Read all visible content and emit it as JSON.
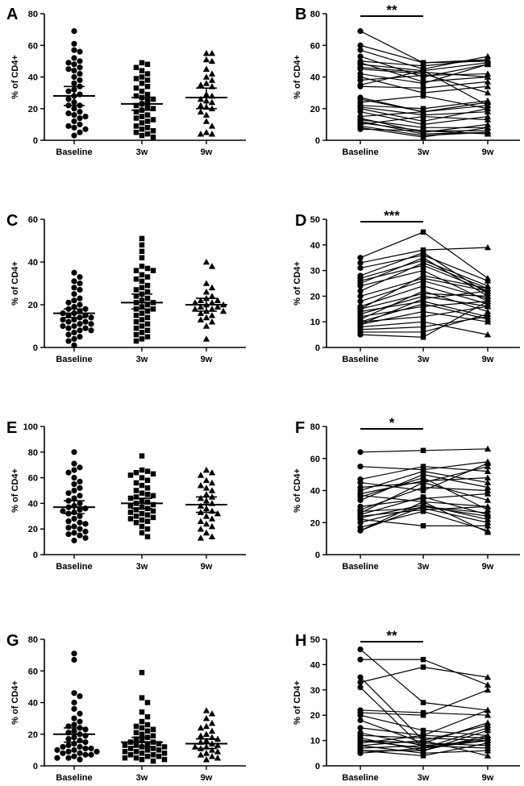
{
  "chart_data": [
    {
      "panel": "A",
      "type": "scatter",
      "ylabel": "% of CD4+",
      "ylim": [
        0,
        80
      ],
      "yticks": [
        0,
        20,
        40,
        60,
        80
      ],
      "categories": [
        "Baseline",
        "3w",
        "9w"
      ],
      "markers": [
        "circle",
        "square",
        "triangle"
      ],
      "series": [
        {
          "name": "Baseline",
          "values": [
            69,
            61,
            57,
            56,
            52,
            50,
            49,
            48,
            46,
            45,
            44,
            42,
            40,
            38,
            36,
            34,
            32,
            31,
            29,
            28,
            26,
            24,
            22,
            22,
            20,
            18,
            17,
            16,
            15,
            14,
            12,
            10,
            9,
            8,
            7,
            5,
            3
          ],
          "mean": 28,
          "sem": [
            22,
            34
          ]
        },
        {
          "name": "3w",
          "values": [
            49,
            48,
            46,
            44,
            42,
            40,
            39,
            38,
            36,
            34,
            33,
            31,
            29,
            28,
            27,
            26,
            25,
            23,
            22,
            21,
            20,
            19,
            18,
            16,
            15,
            14,
            13,
            12,
            11,
            9,
            8,
            7,
            6,
            5,
            4,
            3,
            2
          ],
          "mean": 23,
          "sem": [
            19,
            27
          ]
        },
        {
          "name": "9w",
          "values": [
            55,
            55,
            51,
            50,
            45,
            42,
            40,
            38,
            36,
            35,
            34,
            29,
            28,
            26,
            25,
            24,
            22,
            21,
            20,
            18,
            16,
            12,
            9,
            5,
            4,
            4
          ],
          "mean": 27,
          "sem": [
            20,
            33
          ]
        }
      ]
    },
    {
      "panel": "B",
      "type": "line",
      "ylabel": "% of CD4+",
      "ylim": [
        0,
        80
      ],
      "yticks": [
        0,
        20,
        40,
        60,
        80
      ],
      "categories": [
        "Baseline",
        "3w",
        "9w"
      ],
      "markers": [
        "circle",
        "square",
        "triangle"
      ],
      "significance": {
        "from": "Baseline",
        "to": "3w",
        "text": "**"
      },
      "pairs": [
        [
          69,
          49,
          51
        ],
        [
          60,
          49,
          50
        ],
        [
          57,
          45,
          53
        ],
        [
          53,
          40,
          48
        ],
        [
          50,
          47,
          51
        ],
        [
          49,
          37,
          40
        ],
        [
          48,
          44,
          49
        ],
        [
          46,
          43,
          40
        ],
        [
          45,
          42,
          30
        ],
        [
          42,
          36,
          48
        ],
        [
          40,
          30,
          34
        ],
        [
          38,
          41,
          42
        ],
        [
          35,
          44,
          22
        ],
        [
          34,
          33,
          37
        ],
        [
          27,
          18,
          22
        ],
        [
          26,
          18,
          24
        ],
        [
          24,
          28,
          20
        ],
        [
          22,
          20,
          25
        ],
        [
          21,
          16,
          18
        ],
        [
          20,
          12,
          20
        ],
        [
          18,
          10,
          15
        ],
        [
          15,
          18,
          24
        ],
        [
          14,
          5,
          10
        ],
        [
          13,
          8,
          8
        ],
        [
          12,
          4,
          5
        ],
        [
          11,
          6,
          4
        ],
        [
          10,
          15,
          13
        ],
        [
          9,
          3,
          5
        ],
        [
          8,
          2,
          8
        ],
        [
          7,
          6,
          6
        ]
      ]
    },
    {
      "panel": "C",
      "type": "scatter",
      "ylabel": "% of CD4+",
      "ylim": [
        0,
        60
      ],
      "yticks": [
        0,
        20,
        40,
        60
      ],
      "categories": [
        "Baseline",
        "3w",
        "9w"
      ],
      "markers": [
        "circle",
        "square",
        "triangle"
      ],
      "series": [
        {
          "name": "Baseline",
          "values": [
            35,
            33,
            31,
            30,
            28,
            27,
            25,
            23,
            22,
            21,
            20,
            19,
            18,
            18,
            17,
            16,
            16,
            15,
            15,
            14,
            14,
            13,
            13,
            12,
            12,
            11,
            11,
            10,
            10,
            9,
            9,
            8,
            8,
            7,
            6,
            5,
            4,
            3,
            1
          ],
          "mean": 16,
          "sem": [
            14,
            18
          ]
        },
        {
          "name": "3w",
          "values": [
            51,
            48,
            45,
            42,
            38,
            37,
            36,
            36,
            34,
            33,
            32,
            31,
            29,
            28,
            27,
            26,
            25,
            24,
            23,
            22,
            21,
            21,
            20,
            19,
            18,
            18,
            17,
            16,
            15,
            14,
            13,
            12,
            11,
            10,
            9,
            8,
            7,
            6,
            5,
            4,
            3
          ],
          "mean": 21,
          "sem": [
            18,
            25
          ]
        },
        {
          "name": "9w",
          "values": [
            40,
            38,
            30,
            28,
            26,
            24,
            23,
            22,
            22,
            21,
            21,
            20,
            20,
            19,
            19,
            18,
            18,
            17,
            17,
            16,
            15,
            14,
            13,
            12,
            10,
            4
          ],
          "mean": 20,
          "sem": [
            17,
            23
          ]
        }
      ]
    },
    {
      "panel": "D",
      "type": "line",
      "ylabel": "% of CD4+",
      "ylim": [
        0,
        50
      ],
      "yticks": [
        0,
        10,
        20,
        30,
        40,
        50
      ],
      "categories": [
        "Baseline",
        "3w",
        "9w"
      ],
      "markers": [
        "circle",
        "square",
        "triangle"
      ],
      "significance": {
        "from": "Baseline",
        "to": "3w",
        "text": "***"
      },
      "pairs": [
        [
          35,
          45,
          27
        ],
        [
          33,
          38,
          39
        ],
        [
          31,
          36,
          26
        ],
        [
          28,
          37,
          21
        ],
        [
          27,
          34,
          24
        ],
        [
          26,
          32,
          22
        ],
        [
          25,
          35,
          20
        ],
        [
          24,
          30,
          18
        ],
        [
          22,
          33,
          23
        ],
        [
          20,
          27,
          22
        ],
        [
          18,
          26,
          19
        ],
        [
          16,
          24,
          17
        ],
        [
          15,
          21,
          20
        ],
        [
          15,
          28,
          23
        ],
        [
          14,
          18,
          12
        ],
        [
          13,
          20,
          16
        ],
        [
          12,
          16,
          18
        ],
        [
          11,
          22,
          14
        ],
        [
          10,
          17,
          11
        ],
        [
          10,
          12,
          16
        ],
        [
          9,
          14,
          10
        ],
        [
          9,
          19,
          22
        ],
        [
          8,
          10,
          5
        ],
        [
          7,
          8,
          12
        ],
        [
          6,
          6,
          13
        ],
        [
          5,
          4,
          18
        ]
      ]
    },
    {
      "panel": "E",
      "type": "scatter",
      "ylabel": "% of CD4+",
      "ylim": [
        0,
        100
      ],
      "yticks": [
        0,
        20,
        40,
        60,
        80,
        100
      ],
      "categories": [
        "Baseline",
        "3w",
        "9w"
      ],
      "markers": [
        "circle",
        "square",
        "triangle"
      ],
      "series": [
        {
          "name": "Baseline",
          "values": [
            80,
            71,
            68,
            66,
            64,
            60,
            57,
            55,
            52,
            50,
            48,
            46,
            44,
            42,
            40,
            38,
            37,
            36,
            35,
            34,
            33,
            32,
            30,
            28,
            26,
            25,
            24,
            22,
            21,
            20,
            18,
            17,
            16,
            15,
            13,
            11
          ],
          "mean": 37,
          "sem": [
            32,
            42
          ]
        },
        {
          "name": "3w",
          "values": [
            77,
            66,
            65,
            64,
            63,
            62,
            60,
            58,
            56,
            54,
            52,
            50,
            48,
            47,
            46,
            45,
            44,
            42,
            41,
            40,
            39,
            38,
            37,
            36,
            35,
            34,
            33,
            32,
            31,
            30,
            29,
            28,
            27,
            26,
            25,
            22,
            20,
            17,
            14
          ],
          "mean": 40,
          "sem": [
            36,
            44
          ]
        },
        {
          "name": "9w",
          "values": [
            66,
            64,
            62,
            58,
            56,
            54,
            52,
            50,
            47,
            45,
            44,
            42,
            40,
            38,
            36,
            34,
            33,
            32,
            30,
            28,
            26,
            24,
            22,
            20,
            17,
            14,
            13
          ],
          "mean": 39,
          "sem": [
            33,
            45
          ]
        }
      ]
    },
    {
      "panel": "F",
      "type": "line",
      "ylabel": "% of CD4+",
      "ylim": [
        0,
        80
      ],
      "yticks": [
        0,
        20,
        40,
        60,
        80
      ],
      "categories": [
        "Baseline",
        "3w",
        "9w"
      ],
      "markers": [
        "circle",
        "square",
        "triangle"
      ],
      "significance": {
        "from": "Baseline",
        "to": "3w",
        "text": "*"
      },
      "pairs": [
        [
          64,
          65,
          66
        ],
        [
          55,
          53,
          58
        ],
        [
          47,
          55,
          52
        ],
        [
          45,
          40,
          57
        ],
        [
          42,
          45,
          55
        ],
        [
          40,
          52,
          45
        ],
        [
          38,
          46,
          48
        ],
        [
          37,
          33,
          30
        ],
        [
          36,
          48,
          28
        ],
        [
          34,
          50,
          42
        ],
        [
          30,
          35,
          38
        ],
        [
          28,
          42,
          40
        ],
        [
          27,
          29,
          20
        ],
        [
          26,
          45,
          34
        ],
        [
          25,
          36,
          25
        ],
        [
          24,
          28,
          30
        ],
        [
          23,
          31,
          22
        ],
        [
          22,
          18,
          18
        ],
        [
          20,
          30,
          24
        ],
        [
          17,
          27,
          15
        ],
        [
          15,
          33,
          14
        ],
        [
          15,
          30,
          26
        ]
      ]
    },
    {
      "panel": "G",
      "type": "scatter",
      "ylabel": "% of CD4+",
      "ylim": [
        0,
        80
      ],
      "yticks": [
        0,
        20,
        40,
        60,
        80
      ],
      "categories": [
        "Baseline",
        "3w",
        "9w"
      ],
      "markers": [
        "circle",
        "square",
        "triangle"
      ],
      "series": [
        {
          "name": "Baseline",
          "values": [
            71,
            67,
            46,
            44,
            40,
            36,
            33,
            30,
            28,
            26,
            25,
            24,
            23,
            22,
            21,
            20,
            19,
            18,
            17,
            16,
            15,
            14,
            13,
            12,
            12,
            11,
            11,
            10,
            10,
            9,
            9,
            8,
            8,
            7,
            7,
            6,
            5,
            5,
            4
          ],
          "mean": 20,
          "sem": [
            15,
            24
          ]
        },
        {
          "name": "3w",
          "values": [
            59,
            43,
            40,
            34,
            31,
            28,
            26,
            25,
            24,
            23,
            22,
            21,
            20,
            19,
            18,
            17,
            16,
            15,
            15,
            14,
            14,
            13,
            13,
            12,
            12,
            11,
            11,
            10,
            10,
            9,
            9,
            8,
            8,
            7,
            7,
            6,
            6,
            5,
            5,
            4,
            4,
            3
          ],
          "mean": 15,
          "sem": [
            12,
            18
          ]
        },
        {
          "name": "9w",
          "values": [
            35,
            33,
            30,
            27,
            25,
            24,
            22,
            20,
            19,
            18,
            17,
            16,
            15,
            14,
            13,
            12,
            12,
            11,
            10,
            9,
            8,
            7,
            6,
            5,
            4
          ],
          "mean": 14,
          "sem": [
            11,
            17
          ]
        }
      ]
    },
    {
      "panel": "H",
      "type": "line",
      "ylabel": "% of CD4+",
      "ylim": [
        0,
        50
      ],
      "yticks": [
        0,
        10,
        20,
        30,
        40,
        50
      ],
      "categories": [
        "Baseline",
        "3w",
        "9w"
      ],
      "markers": [
        "circle",
        "square",
        "triangle"
      ],
      "significance": {
        "from": "Baseline",
        "to": "3w",
        "text": "**"
      },
      "pairs": [
        [
          46,
          25,
          22
        ],
        [
          42,
          42,
          32
        ],
        [
          35,
          10,
          16
        ],
        [
          33,
          39,
          35
        ],
        [
          31,
          7,
          11
        ],
        [
          22,
          21,
          20
        ],
        [
          21,
          20,
          30
        ],
        [
          20,
          14,
          12
        ],
        [
          18,
          9,
          17
        ],
        [
          15,
          12,
          22
        ],
        [
          13,
          8,
          10
        ],
        [
          12,
          11,
          10
        ],
        [
          11,
          6,
          14
        ],
        [
          10,
          9,
          8
        ],
        [
          10,
          7,
          15
        ],
        [
          9,
          12,
          11
        ],
        [
          8,
          5,
          6
        ],
        [
          8,
          10,
          4
        ],
        [
          7,
          8,
          7
        ],
        [
          6,
          6,
          12
        ],
        [
          6,
          4,
          9
        ],
        [
          5,
          7,
          10
        ]
      ]
    }
  ]
}
